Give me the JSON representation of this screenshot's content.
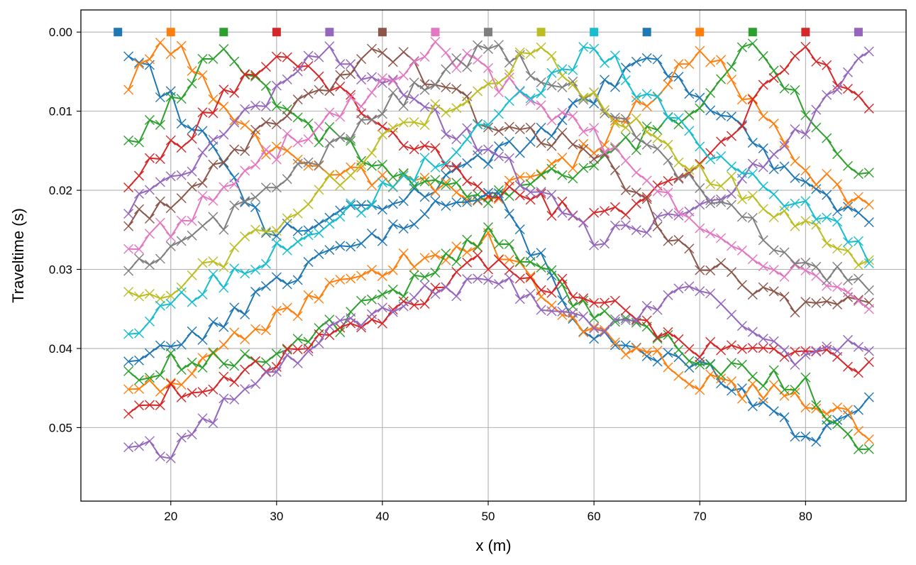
{
  "chart_data": {
    "type": "line",
    "xlabel": "x (m)",
    "ylabel": "Traveltime (s)",
    "xlim": [
      11.5,
      89.5
    ],
    "ylim": [
      0.0593,
      -0.0028
    ],
    "y_inverted": true,
    "grid": true,
    "x_ticks": [
      20,
      30,
      40,
      50,
      60,
      70,
      80
    ],
    "x_tick_labels": [
      "20",
      "30",
      "40",
      "50",
      "60",
      "70",
      "80"
    ],
    "y_ticks": [
      0,
      0.01,
      0.02,
      0.03,
      0.04,
      0.05
    ],
    "y_tick_labels": [
      "0.00",
      "0.01",
      "0.02",
      "0.03",
      "0.04",
      "0.05"
    ],
    "receivers_x_range": [
      16,
      86
    ],
    "sources": [
      {
        "x": 15,
        "color": "#1f77b4"
      },
      {
        "x": 20,
        "color": "#ff7f0e"
      },
      {
        "x": 25,
        "color": "#2ca02c"
      },
      {
        "x": 30,
        "color": "#d62728"
      },
      {
        "x": 35,
        "color": "#9467bd"
      },
      {
        "x": 40,
        "color": "#8c564b"
      },
      {
        "x": 45,
        "color": "#e377c2"
      },
      {
        "x": 50,
        "color": "#7f7f7f"
      },
      {
        "x": 55,
        "color": "#bcbd22"
      },
      {
        "x": 60,
        "color": "#17becf"
      },
      {
        "x": 65,
        "color": "#1f77b4"
      },
      {
        "x": 70,
        "color": "#ff7f0e"
      },
      {
        "x": 75,
        "color": "#2ca02c"
      },
      {
        "x": 80,
        "color": "#d62728"
      },
      {
        "x": 85,
        "color": "#9467bd"
      }
    ],
    "series_rows": [
      {
        "x": [
          16,
          30,
          40,
          50,
          60,
          65,
          70,
          80,
          86
        ],
        "y": [
          0.0017,
          0.0258,
          0.022,
          0.0163,
          0.0087,
          0.0022,
          0.0088,
          0.0191,
          0.0237
        ]
      },
      {
        "x": [
          15,
          20,
          30,
          40,
          50,
          60,
          70,
          80,
          86
        ],
        "y": [
          0.008,
          0.0014,
          0.0158,
          0.0185,
          0.0203,
          0.0149,
          0.0016,
          0.0178,
          0.0216
        ]
      },
      {
        "x": [
          15,
          25,
          30,
          40,
          50,
          60,
          70,
          75,
          86
        ],
        "y": [
          0.0161,
          0.0018,
          0.0097,
          0.017,
          0.0213,
          0.0168,
          0.0095,
          0.0016,
          0.0188
        ]
      },
      {
        "x": [
          15,
          20,
          30,
          40,
          50,
          60,
          70,
          80,
          86
        ],
        "y": [
          0.0194,
          0.0148,
          0.002,
          0.0118,
          0.0195,
          0.0238,
          0.0173,
          0.0018,
          0.0109
        ]
      },
      {
        "x": [
          15,
          20,
          35,
          40,
          50,
          60,
          70,
          80,
          86
        ],
        "y": [
          0.0227,
          0.0191,
          0.002,
          0.0065,
          0.0149,
          0.0263,
          0.0223,
          0.012,
          0.0021
        ]
      },
      {
        "x": [
          15,
          20,
          30,
          40,
          50,
          60,
          70,
          80,
          86
        ],
        "y": [
          0.0244,
          0.0209,
          0.0108,
          0.0019,
          0.0113,
          0.0148,
          0.0294,
          0.0347,
          0.0348
        ]
      },
      {
        "x": [
          15,
          20,
          30,
          40,
          45,
          50,
          60,
          70,
          86
        ],
        "y": [
          0.0274,
          0.0249,
          0.0148,
          0.0068,
          0.0016,
          0.0055,
          0.0131,
          0.025,
          0.0349
        ]
      },
      {
        "x": [
          15,
          20,
          30,
          40,
          50,
          60,
          70,
          80,
          86
        ],
        "y": [
          0.03,
          0.0279,
          0.0196,
          0.0099,
          0.0016,
          0.0085,
          0.0195,
          0.0295,
          0.0314
        ]
      },
      {
        "x": [
          15,
          20,
          30,
          40,
          50,
          55,
          60,
          70,
          86
        ],
        "y": [
          0.034,
          0.0328,
          0.0247,
          0.0136,
          0.0067,
          0.0016,
          0.0084,
          0.0172,
          0.029
        ]
      },
      {
        "x": [
          15,
          20,
          30,
          40,
          50,
          60,
          70,
          80,
          86
        ],
        "y": [
          0.0385,
          0.0346,
          0.0275,
          0.0204,
          0.0118,
          0.0017,
          0.0146,
          0.0227,
          0.0279
        ]
      },
      {
        "x": [
          15,
          20,
          30,
          40,
          50,
          60,
          70,
          80,
          86
        ],
        "y": [
          0.0422,
          0.0402,
          0.0318,
          0.0253,
          0.0198,
          0.0388,
          0.0418,
          0.0519,
          0.0474
        ]
      },
      {
        "x": [
          15,
          20,
          30,
          40,
          50,
          60,
          70,
          80,
          86
        ],
        "y": [
          0.0469,
          0.0444,
          0.0358,
          0.0295,
          0.0265,
          0.038,
          0.044,
          0.0466,
          0.0502
        ]
      },
      {
        "x": [
          15,
          20,
          30,
          40,
          50,
          60,
          70,
          80,
          86
        ],
        "y": [
          0.0443,
          0.0418,
          0.041,
          0.0339,
          0.0259,
          0.0351,
          0.0412,
          0.0449,
          0.0536
        ]
      },
      {
        "x": [
          15,
          20,
          30,
          40,
          50,
          60,
          70,
          80,
          86
        ],
        "y": [
          0.0503,
          0.0458,
          0.0412,
          0.0362,
          0.0288,
          0.0338,
          0.0398,
          0.0407,
          0.0424
        ]
      },
      {
        "x": [
          15,
          20,
          30,
          40,
          50,
          60,
          70,
          80,
          86
        ],
        "y": [
          0.0533,
          0.0525,
          0.0419,
          0.035,
          0.031,
          0.0372,
          0.0327,
          0.042,
          0.039
        ]
      }
    ]
  }
}
